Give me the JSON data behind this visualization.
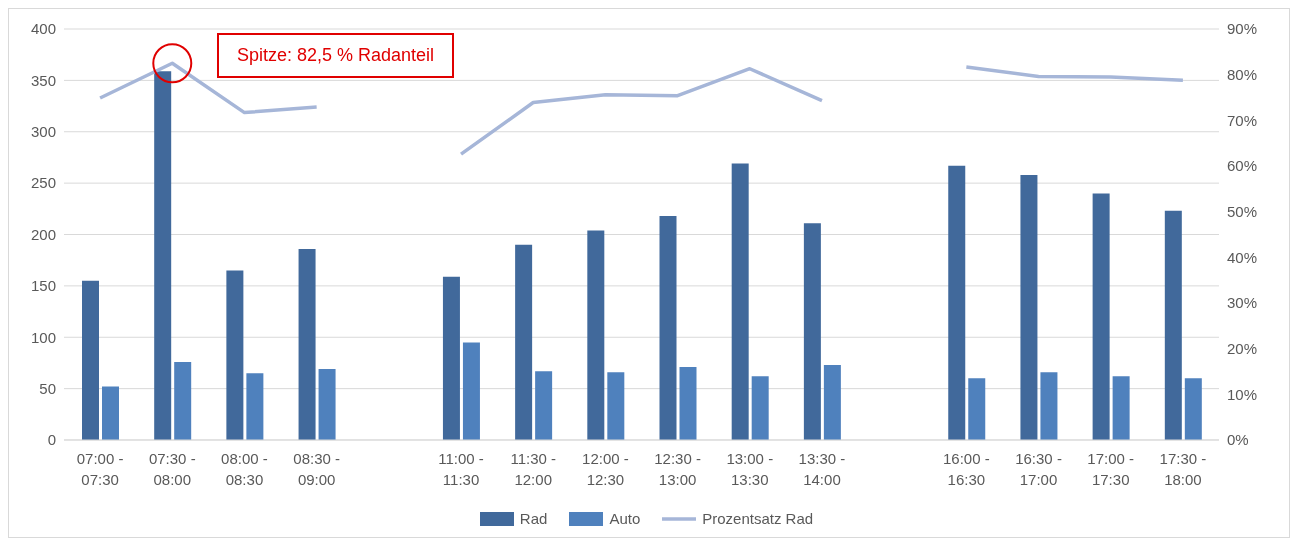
{
  "chart_data": {
    "type": "bar",
    "categories": [
      "07:00 - 07:30",
      "07:30 - 08:00",
      "08:00 - 08:30",
      "08:30 - 09:00",
      null,
      "11:00 - 11:30",
      "11:30 - 12:00",
      "12:00 - 12:30",
      "12:30 - 13:00",
      "13:00 - 13:30",
      "13:30 - 14:00",
      null,
      "16:00 - 16:30",
      "16:30 - 17:00",
      "17:00 - 17:30",
      "17:30 - 18:00"
    ],
    "series": [
      {
        "name": "Rad",
        "color": "#41699b",
        "values": [
          155,
          359,
          165,
          186,
          null,
          159,
          190,
          204,
          218,
          269,
          211,
          null,
          267,
          258,
          240,
          223
        ]
      },
      {
        "name": "Auto",
        "color": "#4f81bd",
        "values": [
          52,
          76,
          65,
          69,
          null,
          95,
          67,
          66,
          71,
          62,
          73,
          null,
          60,
          66,
          62,
          60
        ]
      },
      {
        "name": "Prozentsatz Rad",
        "type": "line",
        "axis": "y2",
        "color": "#a6b6d8",
        "values": [
          74.9,
          82.5,
          71.7,
          72.9,
          null,
          62.6,
          73.9,
          75.6,
          75.4,
          81.3,
          74.3,
          null,
          81.7,
          79.6,
          79.5,
          78.8
        ]
      }
    ],
    "ylim": [
      0,
      400
    ],
    "yticks": [
      0,
      50,
      100,
      150,
      200,
      250,
      300,
      350,
      400
    ],
    "y2lim": [
      0,
      90
    ],
    "y2ticks": [
      {
        "value": 0,
        "label": "0%"
      },
      {
        "value": 10,
        "label": "10%"
      },
      {
        "value": 20,
        "label": "20%"
      },
      {
        "value": 30,
        "label": "30%"
      },
      {
        "value": 40,
        "label": "40%"
      },
      {
        "value": 50,
        "label": "50%"
      },
      {
        "value": 60,
        "label": "60%"
      },
      {
        "value": 70,
        "label": "70%"
      },
      {
        "value": 80,
        "label": "80%"
      },
      {
        "value": 90,
        "label": "90%"
      }
    ],
    "grid": "y",
    "legend": "bottom",
    "marker": "none",
    "annotations": [
      "Spitze: 82,5 % Radanteil"
    ]
  }
}
